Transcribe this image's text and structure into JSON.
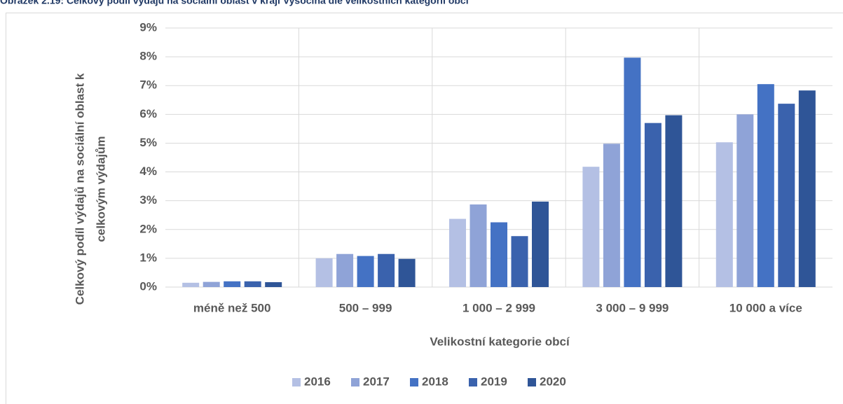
{
  "chart_data": {
    "type": "bar",
    "title": "Obrázek 2.19: Celkový podíl výdajů na sociální oblast v kraji Vysočina dle velikostních kategorií obcí",
    "y_label": [
      "Celkový podíl výdajů na sociální oblast k",
      "celkovým výdajům"
    ],
    "x_label": "Velikostní kategorie obcí",
    "categories": [
      "méně než 500",
      "500 – 999",
      "1 000 – 2 999",
      "3 000 – 9 999",
      "10 000 a více"
    ],
    "series": [
      {
        "name": "2016",
        "color": "#b4c0e4",
        "values": [
          0.15,
          1.0,
          2.37,
          4.18,
          5.03
        ]
      },
      {
        "name": "2017",
        "color": "#8fa3d7",
        "values": [
          0.18,
          1.15,
          2.87,
          4.98,
          6.0
        ]
      },
      {
        "name": "2018",
        "color": "#4472c4",
        "values": [
          0.2,
          1.08,
          2.25,
          7.97,
          7.05
        ]
      },
      {
        "name": "2019",
        "color": "#3a62ad",
        "values": [
          0.2,
          1.15,
          1.77,
          5.7,
          6.37
        ]
      },
      {
        "name": "2020",
        "color": "#2f5597",
        "values": [
          0.17,
          0.98,
          2.97,
          5.97,
          6.83
        ]
      }
    ],
    "ylim": [
      0,
      9
    ],
    "yticks": [
      {
        "value": 0,
        "label": "0%"
      },
      {
        "value": 1,
        "label": "1%"
      },
      {
        "value": 2,
        "label": "2%"
      },
      {
        "value": 3,
        "label": "3%"
      },
      {
        "value": 4,
        "label": "4%"
      },
      {
        "value": 5,
        "label": "5%"
      },
      {
        "value": 6,
        "label": "6%"
      },
      {
        "value": 7,
        "label": "7%"
      },
      {
        "value": 8,
        "label": "8%"
      },
      {
        "value": 9,
        "label": "9%"
      }
    ],
    "grid": true,
    "legend": "bottom"
  }
}
